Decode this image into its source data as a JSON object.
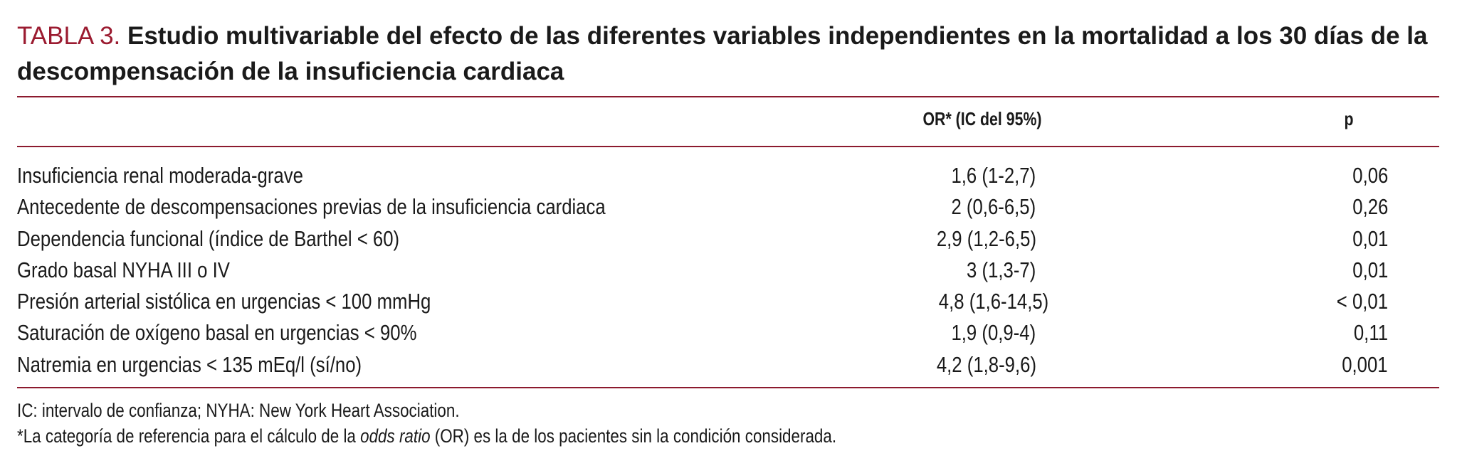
{
  "title": {
    "label": "TABLA 3.",
    "text": "Estudio multivariable del efecto de las diferentes variables independientes en la mortalidad a los 30 días de la descompensación de la insuficiencia cardiaca"
  },
  "table": {
    "headers": {
      "variable": "",
      "or": "OR* (IC del 95%)",
      "p": "p"
    },
    "rows": [
      {
        "variable": "Insuficiencia renal moderada-grave",
        "or": "1,6 (1-2,7)",
        "p": "0,06"
      },
      {
        "variable": "Antecedente de descompensaciones previas de la insuficiencia cardiaca",
        "or": "2 (0,6-6,5)",
        "p": "0,26"
      },
      {
        "variable": "Dependencia funcional (índice de Barthel < 60)",
        "or": "2,9 (1,2-6,5)",
        "p": "0,01"
      },
      {
        "variable": "Grado basal NYHA III o IV",
        "or": "3 (1,3-7)",
        "p": "0,01"
      },
      {
        "variable": "Presión arterial sistólica en urgencias < 100 mmHg",
        "or": "4,8 (1,6-14,5)",
        "p": "< 0,01"
      },
      {
        "variable": "Saturación de oxígeno basal en urgencias < 90%",
        "or": "1,9 (0,9-4)",
        "p": "0,11"
      },
      {
        "variable": "Natremia en urgencias < 135 mEq/l (sí/no)",
        "or": "4,2 (1,8-9,6)",
        "p": "0,001"
      }
    ]
  },
  "footnotes": {
    "abbreviations": "IC: intervalo de confianza; NYHA: New York Heart Association.",
    "reference_prefix": "*La categoría de referencia para el cálculo de la ",
    "reference_italic": "odds ratio",
    "reference_suffix": " (OR) es la de los pacientes sin la condición considerada."
  },
  "colors": {
    "accent": "#9b1b30",
    "rule": "#8c1a2e",
    "text": "#1a1a1a"
  }
}
